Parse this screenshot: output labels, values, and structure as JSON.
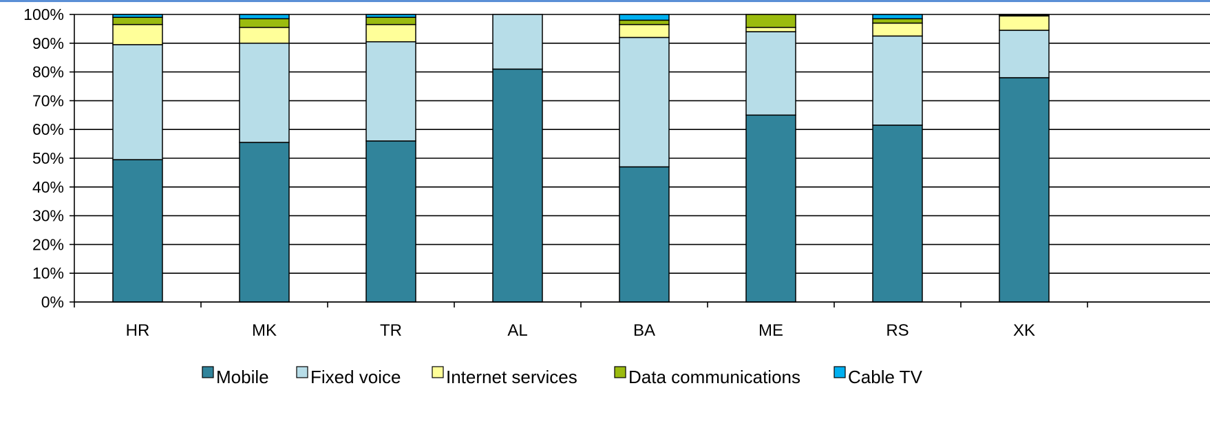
{
  "chart_data": {
    "type": "bar",
    "stacked": true,
    "categories": [
      "HR",
      "MK",
      "TR",
      "AL",
      "BA",
      "ME",
      "RS",
      "XK"
    ],
    "series": [
      {
        "name": "Mobile",
        "color": "#31849b",
        "values": [
          49.5,
          55.5,
          56,
          81,
          47,
          65,
          61.5,
          78
        ]
      },
      {
        "name": "Fixed voice",
        "color": "#b7dde8",
        "values": [
          40,
          34.5,
          34.5,
          19,
          45,
          29,
          31,
          16.5
        ]
      },
      {
        "name": "Internet services",
        "color": "#ffff99",
        "values": [
          7,
          5.5,
          6,
          0,
          4.5,
          1.5,
          4.5,
          5
        ]
      },
      {
        "name": "Data communications",
        "color": "#9bbb0f",
        "values": [
          2.5,
          3,
          2.5,
          0,
          1.5,
          4.5,
          1.5,
          0.3
        ]
      },
      {
        "name": "Cable TV",
        "color": "#00b0f0",
        "values": [
          1,
          1.5,
          1,
          0,
          2,
          0,
          1.5,
          0.2
        ]
      }
    ],
    "yticks": [
      "0%",
      "10%",
      "20%",
      "30%",
      "40%",
      "50%",
      "60%",
      "70%",
      "80%",
      "90%",
      "100%"
    ],
    "ylim": [
      0,
      100
    ],
    "grid": true,
    "legend_position": "bottom",
    "title": "",
    "xlabel": "",
    "ylabel": ""
  }
}
